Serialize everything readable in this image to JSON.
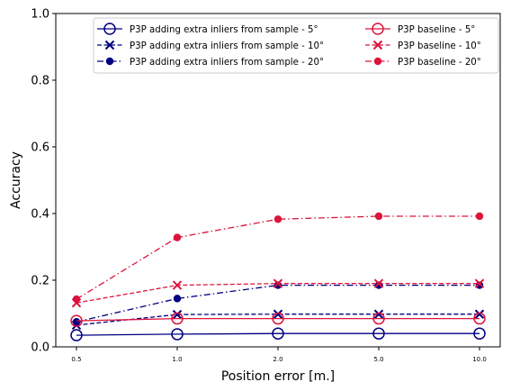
{
  "chart_data": {
    "type": "line",
    "xlabel": "Position error [m.]",
    "ylabel": "Accuracy",
    "x": [
      "0.5",
      "1.0",
      "2.0",
      "5.0",
      "10.0"
    ],
    "ylim": [
      0,
      1.0
    ],
    "yticks": [
      "0.0",
      "0.2",
      "0.4",
      "0.6",
      "0.8",
      "1.0"
    ],
    "grid": false,
    "legend_position": "top-right",
    "series": [
      {
        "name": "P3P adding extra inliers from sample - 5°",
        "color": "#000080",
        "marker": "open-circle",
        "linestyle": "solid",
        "values": [
          0.035,
          0.038,
          0.04,
          0.04,
          0.04
        ]
      },
      {
        "name": "P3P adding extra inliers from sample - 10°",
        "color": "#000080",
        "marker": "x",
        "linestyle": "dashed",
        "values": [
          0.065,
          0.097,
          0.098,
          0.098,
          0.098
        ]
      },
      {
        "name": "P3P adding extra inliers from sample - 20°",
        "color": "#000080",
        "marker": "filled-circle",
        "linestyle": "dashdot",
        "values": [
          0.075,
          0.145,
          0.185,
          0.185,
          0.185
        ]
      },
      {
        "name": "P3P baseline - 5°",
        "color": "#dc143c",
        "marker": "open-circle",
        "linestyle": "solid",
        "values": [
          0.078,
          0.085,
          0.085,
          0.085,
          0.085
        ]
      },
      {
        "name": "P3P baseline - 10°",
        "color": "#dc143c",
        "marker": "x",
        "linestyle": "dashed",
        "values": [
          0.132,
          0.185,
          0.19,
          0.19,
          0.19
        ]
      },
      {
        "name": "P3P baseline - 20°",
        "color": "#dc143c",
        "marker": "filled-circle",
        "linestyle": "dashdot",
        "values": [
          0.143,
          0.328,
          0.383,
          0.392,
          0.392
        ]
      }
    ]
  }
}
